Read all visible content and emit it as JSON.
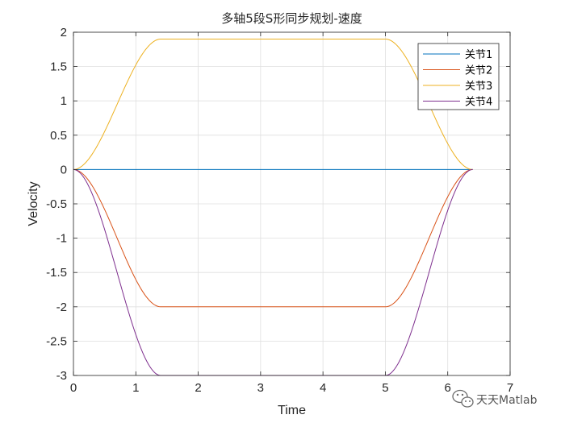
{
  "chart_data": {
    "type": "line",
    "title": "多轴5段S形同步规划-速度",
    "xlabel": "Time",
    "ylabel": "Velocity",
    "xlim": [
      0,
      7
    ],
    "ylim": [
      -3,
      2
    ],
    "xticks": [
      0,
      1,
      2,
      3,
      4,
      5,
      6,
      7
    ],
    "yticks": [
      2,
      1.5,
      1,
      0.5,
      0,
      -0.5,
      -1,
      -1.5,
      -2,
      -2.5,
      -3
    ],
    "grid": true,
    "legend_position": "top-right",
    "profile": {
      "accel_end": 1.4,
      "decel_start": 5.0,
      "end": 6.4
    },
    "series": [
      {
        "name": "关节1",
        "color": "#0072BD",
        "cruise_velocity": 0
      },
      {
        "name": "关节2",
        "color": "#D95319",
        "cruise_velocity": -2.0
      },
      {
        "name": "关节3",
        "color": "#EDB120",
        "cruise_velocity": 1.9
      },
      {
        "name": "关节4",
        "color": "#7E2F8E",
        "cruise_velocity": -3.0
      }
    ]
  },
  "watermark": {
    "text": "天天Matlab",
    "icon": "wechat-icon"
  }
}
